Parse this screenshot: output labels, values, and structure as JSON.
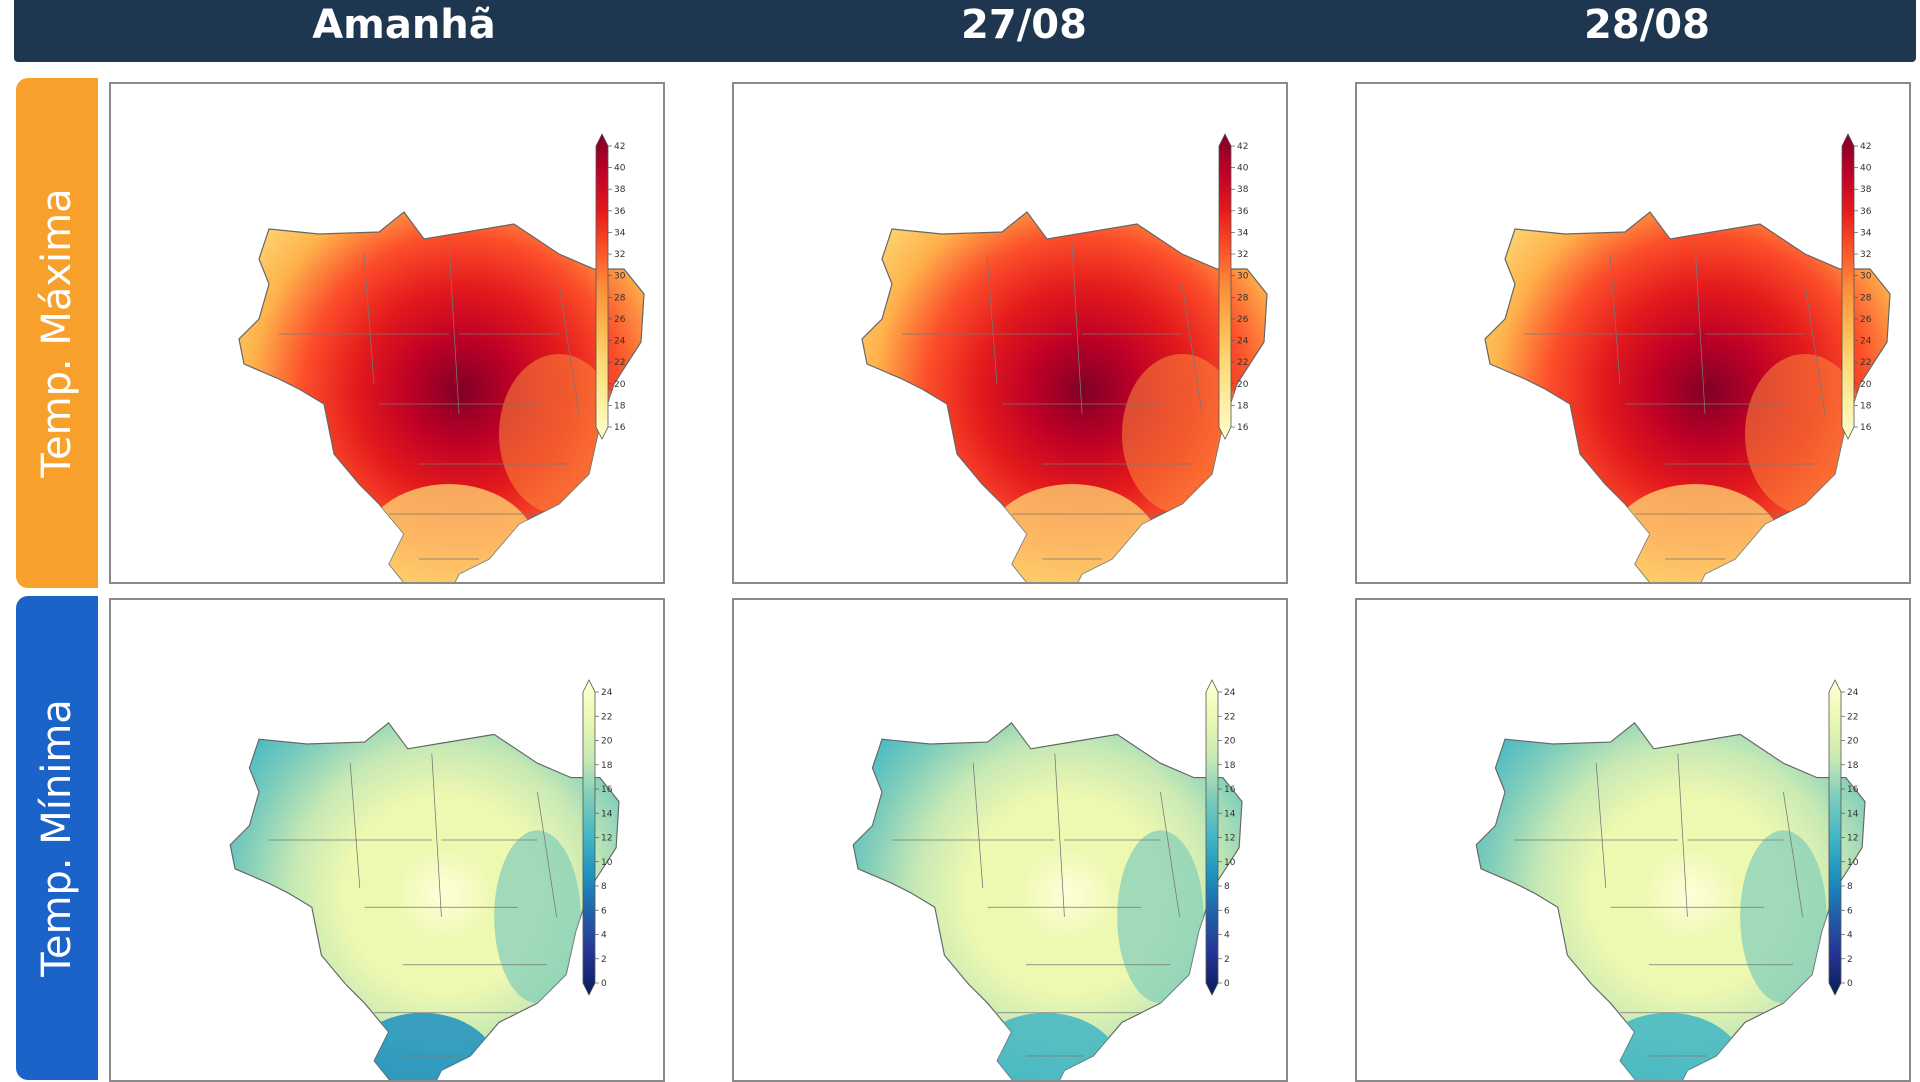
{
  "columns": [
    "Amanhã",
    "27/08",
    "28/08"
  ],
  "rows": [
    {
      "label": "Temp. Máxima",
      "tab_color": "#f7a12c",
      "scale": {
        "ticks": [
          "16",
          "18",
          "20",
          "22",
          "24",
          "26",
          "28",
          "30",
          "32",
          "34",
          "36",
          "38",
          "40",
          "42"
        ],
        "colors": [
          "#ffffcc",
          "#ffeda0",
          "#fed976",
          "#feb24c",
          "#fd8d3c",
          "#fc4e2a",
          "#e31a1c",
          "#bd0026",
          "#800026"
        ]
      }
    },
    {
      "label": "Temp. Mínima",
      "tab_color": "#1b63c8",
      "scale": {
        "ticks": [
          "0",
          "2",
          "4",
          "6",
          "8",
          "10",
          "12",
          "14",
          "16",
          "18",
          "20",
          "22",
          "24"
        ],
        "colors": [
          "#081d58",
          "#253494",
          "#225ea8",
          "#1d91c0",
          "#41b6c4",
          "#7fcdbb",
          "#c7e9b4",
          "#edf8b1",
          "#ffffd9"
        ]
      }
    }
  ]
}
